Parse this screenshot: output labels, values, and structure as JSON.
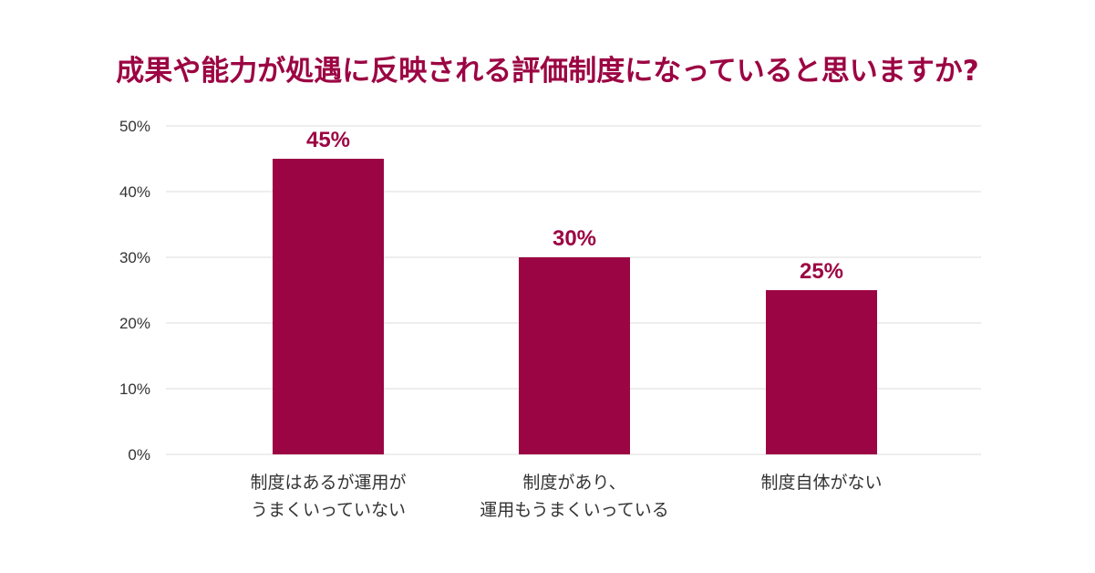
{
  "chart_data": {
    "type": "bar",
    "title": "成果や能力が処遇に反映される評価制度になっていると思いますか?",
    "categories": [
      [
        "制度はあるが運用が",
        "うまくいっていない"
      ],
      [
        "制度があり、",
        "運用もうまくいっている"
      ],
      [
        "制度自体がない"
      ]
    ],
    "values": [
      45,
      30,
      25
    ],
    "data_labels": [
      "45%",
      "30%",
      "25%"
    ],
    "yticks": [
      "0%",
      "10%",
      "20%",
      "30%",
      "40%",
      "50%"
    ],
    "ylim": [
      0,
      50
    ],
    "ystep": 10,
    "grid": true,
    "legend": "none",
    "bar_color": "#9c0543",
    "grid_color": "#dcdcdc"
  }
}
